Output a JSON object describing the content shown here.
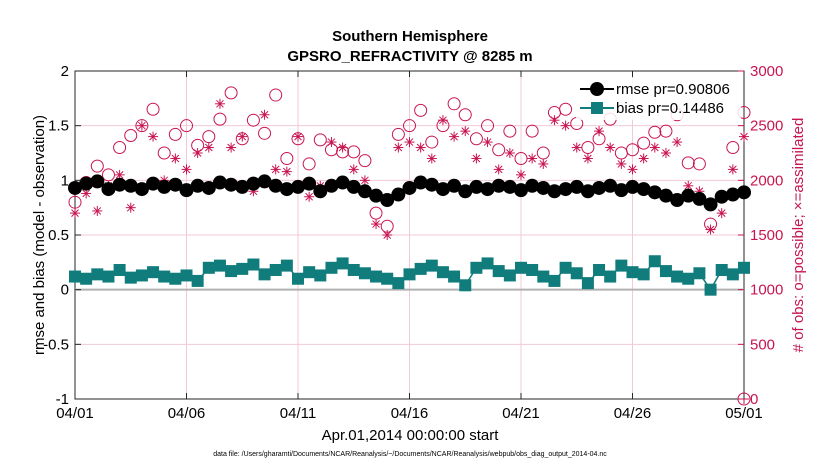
{
  "chart_data": {
    "type": "scatter",
    "title": "Southern Hemisphere",
    "subtitle": "GPSRO_REFRACTIVITY @ 8285 m",
    "xlabel": "Apr.01,2014 00:00:00 start",
    "ylabel_left": "rmse and bias (model - observation)",
    "ylabel_right": "# of obs: o=possible; ×=assimilated",
    "footnote": "data file: /Users/gharamti/Documents/NCAR/Reanalysis/~/Documents/NCAR/Reanalysis/webpub/obs_diag_output_2014-04.nc",
    "xlim": [
      0,
      30
    ],
    "ylim_left": [
      -1,
      2
    ],
    "ylim_right": [
      0,
      3000
    ],
    "x_ticks": [
      0,
      5,
      10,
      15,
      20,
      25,
      30
    ],
    "x_tick_labels": [
      "04/01",
      "04/06",
      "04/11",
      "04/16",
      "04/21",
      "04/26",
      "05/01"
    ],
    "y_left_ticks": [
      -1,
      -0.5,
      0,
      0.5,
      1,
      1.5,
      2
    ],
    "y_left_tick_labels": [
      "-1",
      "-0.5",
      "0",
      "0.5",
      "1",
      "1.5",
      "2"
    ],
    "y_right_ticks": [
      0,
      500,
      1000,
      1500,
      2000,
      2500,
      3000
    ],
    "y_right_tick_labels": [
      "0",
      "500",
      "1000",
      "1500",
      "2000",
      "2500",
      "3000"
    ],
    "legend": {
      "position": "top-right",
      "entries": [
        "rmse pr=0.90806",
        "bias pr=0.14486"
      ]
    },
    "colors": {
      "rmse": "#000000",
      "bias": "#117c7c",
      "obs": "#c8154f",
      "zero_line": "#b0b0b0",
      "grid": "#f2c9d6"
    },
    "series": [
      {
        "name": "rmse",
        "axis": "left",
        "marker": "filled-circle",
        "line": true,
        "x": [
          0,
          0.5,
          1,
          1.5,
          2,
          2.5,
          3,
          3.5,
          4,
          4.5,
          5,
          5.5,
          6,
          6.5,
          7,
          7.5,
          8,
          8.5,
          9,
          9.5,
          10,
          10.5,
          11,
          11.5,
          12,
          12.5,
          13,
          13.5,
          14,
          14.5,
          15,
          15.5,
          16,
          16.5,
          17,
          17.5,
          18,
          18.5,
          19,
          19.5,
          20,
          20.5,
          21,
          21.5,
          22,
          22.5,
          23,
          23.5,
          24,
          24.5,
          25,
          25.5,
          26,
          26.5,
          27,
          27.5,
          28,
          28.5,
          29,
          29.5,
          30
        ],
        "values": [
          0.93,
          0.97,
          0.99,
          0.92,
          0.96,
          0.95,
          0.92,
          0.97,
          0.94,
          0.96,
          0.91,
          0.95,
          0.93,
          0.98,
          0.96,
          0.94,
          0.97,
          0.99,
          0.95,
          0.92,
          0.94,
          0.97,
          0.9,
          0.95,
          0.98,
          0.94,
          0.9,
          0.86,
          0.82,
          0.87,
          0.93,
          0.98,
          0.96,
          0.92,
          0.95,
          0.9,
          0.94,
          0.92,
          0.95,
          0.94,
          0.91,
          0.95,
          0.93,
          0.9,
          0.92,
          0.94,
          0.9,
          0.93,
          0.95,
          0.91,
          0.94,
          0.92,
          0.89,
          0.86,
          0.82,
          0.86,
          0.83,
          0.78,
          0.85,
          0.87,
          0.89
        ]
      },
      {
        "name": "bias",
        "axis": "left",
        "marker": "filled-square",
        "line": true,
        "x": [
          0,
          0.5,
          1,
          1.5,
          2,
          2.5,
          3,
          3.5,
          4,
          4.5,
          5,
          5.5,
          6,
          6.5,
          7,
          7.5,
          8,
          8.5,
          9,
          9.5,
          10,
          10.5,
          11,
          11.5,
          12,
          12.5,
          13,
          13.5,
          14,
          14.5,
          15,
          15.5,
          16,
          16.5,
          17,
          17.5,
          18,
          18.5,
          19,
          19.5,
          20,
          20.5,
          21,
          21.5,
          22,
          22.5,
          23,
          23.5,
          24,
          24.5,
          25,
          25.5,
          26,
          26.5,
          27,
          27.5,
          28,
          28.5,
          29,
          29.5,
          30
        ],
        "values": [
          0.12,
          0.1,
          0.14,
          0.12,
          0.18,
          0.11,
          0.13,
          0.16,
          0.12,
          0.1,
          0.13,
          0.08,
          0.2,
          0.22,
          0.17,
          0.19,
          0.23,
          0.14,
          0.18,
          0.22,
          0.1,
          0.16,
          0.13,
          0.2,
          0.24,
          0.18,
          0.15,
          0.12,
          0.1,
          0.06,
          0.14,
          0.19,
          0.22,
          0.16,
          0.12,
          0.04,
          0.2,
          0.24,
          0.17,
          0.13,
          0.2,
          0.18,
          0.12,
          0.08,
          0.2,
          0.15,
          0.06,
          0.18,
          0.12,
          0.22,
          0.16,
          0.14,
          0.26,
          0.17,
          0.12,
          0.1,
          0.15,
          0.0,
          0.18,
          0.14,
          0.2
        ]
      },
      {
        "name": "possible",
        "axis": "right",
        "marker": "open-circle",
        "x": [
          0,
          0.5,
          1,
          1.5,
          2,
          2.5,
          3,
          3.5,
          4,
          4.5,
          5,
          5.5,
          6,
          6.5,
          7,
          7.5,
          8,
          8.5,
          9,
          9.5,
          10,
          10.5,
          11,
          11.5,
          12,
          12.5,
          13,
          13.5,
          14,
          14.5,
          15,
          15.5,
          16,
          16.5,
          17,
          17.5,
          18,
          18.5,
          19,
          19.5,
          20,
          20.5,
          21,
          21.5,
          22,
          22.5,
          23,
          23.5,
          24,
          24.5,
          25,
          25.5,
          26,
          26.5,
          27,
          27.5,
          28,
          28.5,
          29,
          29.5,
          30
        ],
        "values": [
          1800,
          1980,
          2130,
          2050,
          2300,
          2410,
          2500,
          2650,
          2250,
          2420,
          2500,
          2320,
          2400,
          2560,
          2800,
          2380,
          2550,
          2430,
          2780,
          2200,
          2380,
          2150,
          2370,
          2280,
          2260,
          2260,
          2180,
          1700,
          1580,
          2420,
          2500,
          2640,
          2350,
          2500,
          2700,
          2600,
          2380,
          2500,
          2280,
          2450,
          2200,
          2450,
          2250,
          2620,
          2650,
          2520,
          2300,
          2380,
          2560,
          2250,
          2280,
          2340,
          2440,
          2450,
          2600,
          2160,
          2150,
          1600,
          1850,
          2300,
          2620
        ]
      },
      {
        "name": "assimilated",
        "axis": "right",
        "marker": "asterisk",
        "x": [
          0,
          0.5,
          1,
          1.5,
          2,
          2.5,
          3,
          3.5,
          4,
          4.5,
          5,
          5.5,
          6,
          6.5,
          7,
          7.5,
          8,
          8.5,
          9,
          9.5,
          10,
          10.5,
          11,
          11.5,
          12,
          12.5,
          13,
          13.5,
          14,
          14.5,
          15,
          15.5,
          16,
          16.5,
          17,
          17.5,
          18,
          18.5,
          19,
          19.5,
          20,
          20.5,
          21,
          21.5,
          22,
          22.5,
          23,
          23.5,
          24,
          24.5,
          25,
          25.5,
          26,
          26.5,
          27,
          27.5,
          28,
          28.5,
          29,
          29.5,
          30
        ],
        "values": [
          1700,
          1880,
          1720,
          1950,
          2050,
          1750,
          2500,
          2400,
          2000,
          2200,
          2100,
          2250,
          2300,
          2700,
          2300,
          2400,
          1900,
          2600,
          2100,
          2080,
          2400,
          1850,
          1950,
          2350,
          2300,
          2100,
          2000,
          1600,
          1500,
          2300,
          2350,
          2300,
          2200,
          2550,
          2400,
          2450,
          2200,
          2350,
          2100,
          2250,
          2050,
          2200,
          2150,
          2550,
          2500,
          2300,
          2200,
          2450,
          2300,
          2150,
          2100,
          2200,
          2300,
          2250,
          2350,
          1950,
          1900,
          1550,
          1700,
          2100,
          2400
        ]
      }
    ]
  }
}
